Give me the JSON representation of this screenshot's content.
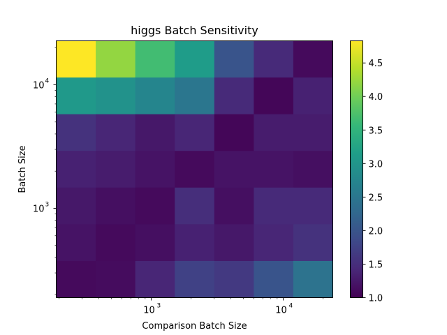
{
  "chart_data": {
    "type": "heatmap",
    "title": "higgs Batch Sensitivity",
    "xlabel": "Comparison Batch Size",
    "ylabel": "Batch Size",
    "x_scale": "log",
    "y_scale": "log",
    "x_ticks": [
      {
        "base": "10",
        "exp": "3",
        "value": 1000
      },
      {
        "base": "10",
        "exp": "4",
        "value": 10000
      }
    ],
    "y_ticks": [
      {
        "base": "10",
        "exp": "3",
        "value": 1000
      },
      {
        "base": "10",
        "exp": "4",
        "value": 10000
      }
    ],
    "colormap": "viridis",
    "vmin": 1.0,
    "vmax": 4.83,
    "colorbar_ticks": [
      "1.0",
      "1.5",
      "2.0",
      "2.5",
      "3.0",
      "3.5",
      "4.0",
      "4.5"
    ],
    "rows_top_to_bottom": [
      [
        4.83,
        4.2,
        3.65,
        3.1,
        2.0,
        1.45,
        1.1
      ],
      [
        3.05,
        2.95,
        2.75,
        2.5,
        1.45,
        1.05,
        1.35
      ],
      [
        1.55,
        1.4,
        1.25,
        1.4,
        1.05,
        1.3,
        1.3
      ],
      [
        1.35,
        1.3,
        1.2,
        1.1,
        1.2,
        1.2,
        1.15
      ],
      [
        1.25,
        1.15,
        1.1,
        1.5,
        1.15,
        1.45,
        1.45
      ],
      [
        1.2,
        1.1,
        1.15,
        1.35,
        1.25,
        1.4,
        1.55
      ],
      [
        1.1,
        1.12,
        1.4,
        1.75,
        1.65,
        2.0,
        2.45
      ]
    ]
  }
}
